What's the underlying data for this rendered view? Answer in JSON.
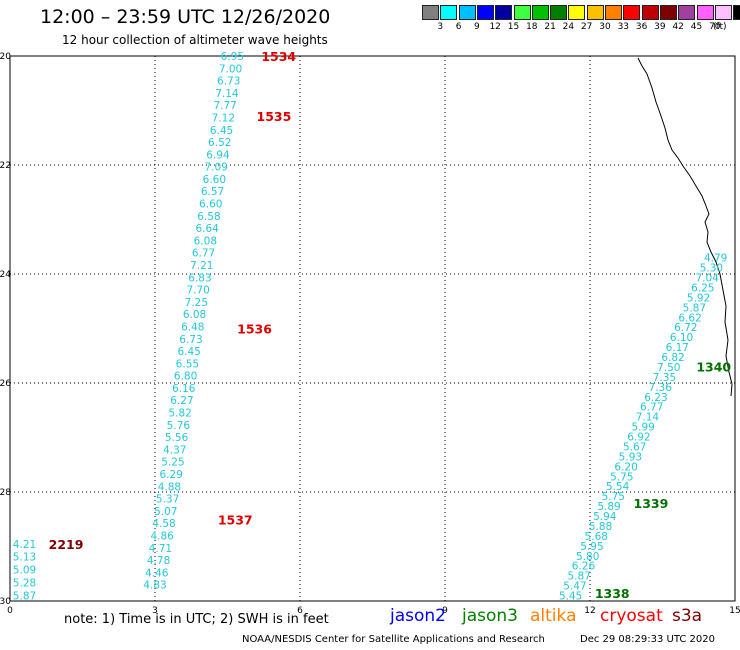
{
  "header": {
    "title": "12:00 – 23:59 UTC 12/26/2020",
    "subtitle": "12 hour collection of altimeter wave heights"
  },
  "legend": {
    "unit": "(ft)",
    "bins": [
      {
        "label": "",
        "color": "#808080"
      },
      {
        "label": "3",
        "color": "#00ffff"
      },
      {
        "label": "6",
        "color": "#00bfff"
      },
      {
        "label": "9",
        "color": "#0000ff"
      },
      {
        "label": "12",
        "color": "#0000a0"
      },
      {
        "label": "15",
        "color": "#40ff40"
      },
      {
        "label": "18",
        "color": "#00c000"
      },
      {
        "label": "21",
        "color": "#008000"
      },
      {
        "label": "24",
        "color": "#ffff00"
      },
      {
        "label": "27",
        "color": "#ffc000"
      },
      {
        "label": "30",
        "color": "#ff8000"
      },
      {
        "label": "33",
        "color": "#ff0000"
      },
      {
        "label": "36",
        "color": "#c00000"
      },
      {
        "label": "39",
        "color": "#800000"
      },
      {
        "label": "42",
        "color": "#a040a0"
      },
      {
        "label": "45",
        "color": "#ff60ff"
      },
      {
        "label": "70",
        "color": "#ffc0ff"
      },
      {
        "label": "",
        "color": "#000000"
      }
    ]
  },
  "map": {
    "lon_ticks": [
      "0",
      "3",
      "6",
      "9",
      "12",
      "15"
    ],
    "lat_ticks": [
      "-20",
      "-22",
      "-24",
      "-26",
      "-28",
      "-30"
    ],
    "track_color": "#22c8d8",
    "tracks": [
      {
        "lon_start": 4.6,
        "lon_end": 3.0,
        "lat_start": -20.0,
        "lat_end": -29.7,
        "values": [
          "6.95",
          "7.00",
          "6.73",
          "7.14",
          "7.77",
          "7.12",
          "6.45",
          "6.52",
          "6.94",
          "7.09",
          "6.60",
          "6.57",
          "6.60",
          "6.58",
          "6.64",
          "6.08",
          "6.77",
          "7.21",
          "6.83",
          "7.70",
          "7.25",
          "6.08",
          "6.48",
          "6.73",
          "6.45",
          "6.55",
          "6.80",
          "6.16",
          "6.27",
          "5.82",
          "5.76",
          "5.56",
          "4.37",
          "5.25",
          "6.29",
          "4.88",
          "5.37",
          "5.07",
          "4.58",
          "4.86",
          "4.71",
          "4.78",
          "4.46",
          "4.83"
        ],
        "times": [
          {
            "label": "1534",
            "lon": 5.2,
            "lat": -20.0,
            "color": "#e00000"
          },
          {
            "label": "1535",
            "lon": 5.1,
            "lat": -21.1,
            "color": "#e00000"
          },
          {
            "label": "1536",
            "lon": 4.7,
            "lat": -25.0,
            "color": "#e00000"
          },
          {
            "label": "1537",
            "lon": 4.3,
            "lat": -28.5,
            "color": "#e00000"
          }
        ]
      },
      {
        "lon_start": 0.3,
        "lon_end": 0.3,
        "lat_start": -28.95,
        "lat_end": -29.9,
        "values": [
          "4.21",
          "5.13",
          "5.09",
          "5.28",
          "5.87"
        ],
        "times": [
          {
            "label": "2219",
            "lon": 0.8,
            "lat": -28.95,
            "color": "#800000"
          }
        ]
      },
      {
        "lon_start": 14.6,
        "lon_end": 11.6,
        "lat_start": -23.7,
        "lat_end": -29.9,
        "values": [
          "4.79",
          "5.30",
          "7.04",
          "6.25",
          "5.92",
          "5.87",
          "6.62",
          "6.72",
          "6.10",
          "6.17",
          "6.82",
          "7.50",
          "7.35",
          "7.36",
          "6.23",
          "6.77",
          "7.14",
          "5.99",
          "6.92",
          "5.67",
          "5.93",
          "6.20",
          "5.75",
          "5.54",
          "5.75",
          "5.89",
          "5.94",
          "5.88",
          "5.68",
          "5.95",
          "5.80",
          "6.26",
          "5.87",
          "5.47",
          "5.45"
        ],
        "times": [
          {
            "label": "1340",
            "lon": 14.2,
            "lat": -25.7,
            "color": "#007000"
          },
          {
            "label": "1339",
            "lon": 12.9,
            "lat": -28.2,
            "color": "#007000"
          },
          {
            "label": "1338",
            "lon": 12.1,
            "lat": -29.85,
            "color": "#007000"
          }
        ]
      }
    ]
  },
  "footer": {
    "note": "note: 1) Time is in UTC; 2) SWH is in feet",
    "satellites": [
      {
        "name": "jason2",
        "color": "#0000ff"
      },
      {
        "name": "jason3",
        "color": "#008000"
      },
      {
        "name": "altika",
        "color": "#ff8000"
      },
      {
        "name": "cryosat",
        "color": "#ff0000"
      },
      {
        "name": "s3a",
        "color": "#800000"
      }
    ],
    "credit": "NOAA/NESDIS Center for Satellite Applications and Research",
    "timestamp": "Dec 29 08:29:33 UTC 2020"
  }
}
